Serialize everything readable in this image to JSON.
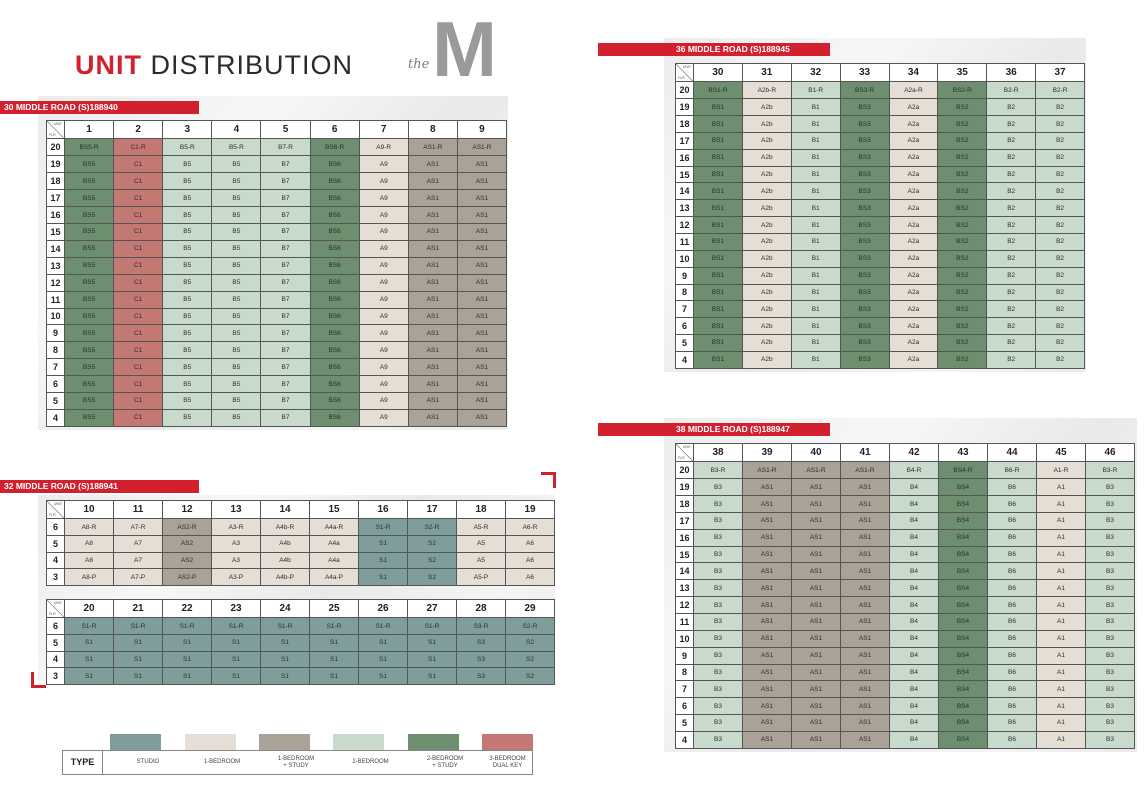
{
  "title": {
    "bold": "UNIT",
    "rest": " DISTRIBUTION"
  },
  "logo": {
    "small": "the",
    "big": "M"
  },
  "corner": {
    "unit": "UNIT",
    "flr": "FLR"
  },
  "buildings": [
    {
      "id": "b30",
      "banner": "30 MIDDLE ROAD (S)188940",
      "units": [
        "1",
        "2",
        "3",
        "4",
        "5",
        "6",
        "7",
        "8",
        "9"
      ],
      "rows": [
        {
          "floor": "20",
          "cells": [
            "BS5-R",
            "C1-R",
            "B5-R",
            "B5-R",
            "B7-R",
            "BS6-R",
            "A9-R",
            "AS1-R",
            "AS1-R"
          ]
        },
        {
          "floor": "19",
          "cells": [
            "BS5",
            "C1",
            "B5",
            "B5",
            "B7",
            "BS6",
            "A9",
            "AS1",
            "AS1"
          ]
        },
        {
          "floor": "18",
          "cells": [
            "BS5",
            "C1",
            "B5",
            "B5",
            "B7",
            "BS6",
            "A9",
            "AS1",
            "AS1"
          ]
        },
        {
          "floor": "17",
          "cells": [
            "BS5",
            "C1",
            "B5",
            "B5",
            "B7",
            "BS6",
            "A9",
            "AS1",
            "AS1"
          ]
        },
        {
          "floor": "16",
          "cells": [
            "BS5",
            "C1",
            "B5",
            "B5",
            "B7",
            "BS6",
            "A9",
            "AS1",
            "AS1"
          ]
        },
        {
          "floor": "15",
          "cells": [
            "BS5",
            "C1",
            "B5",
            "B5",
            "B7",
            "BS6",
            "A9",
            "AS1",
            "AS1"
          ]
        },
        {
          "floor": "14",
          "cells": [
            "BS5",
            "C1",
            "B5",
            "B5",
            "B7",
            "BS6",
            "A9",
            "AS1",
            "AS1"
          ]
        },
        {
          "floor": "13",
          "cells": [
            "BS5",
            "C1",
            "B5",
            "B5",
            "B7",
            "BS6",
            "A9",
            "AS1",
            "AS1"
          ]
        },
        {
          "floor": "12",
          "cells": [
            "BS5",
            "C1",
            "B5",
            "B5",
            "B7",
            "BS6",
            "A9",
            "AS1",
            "AS1"
          ]
        },
        {
          "floor": "11",
          "cells": [
            "BS5",
            "C1",
            "B5",
            "B5",
            "B7",
            "BS6",
            "A9",
            "AS1",
            "AS1"
          ]
        },
        {
          "floor": "10",
          "cells": [
            "BS5",
            "C1",
            "B5",
            "B5",
            "B7",
            "BS6",
            "A9",
            "AS1",
            "AS1"
          ]
        },
        {
          "floor": "9",
          "cells": [
            "BS5",
            "C1",
            "B5",
            "B5",
            "B7",
            "BS6",
            "A9",
            "AS1",
            "AS1"
          ]
        },
        {
          "floor": "8",
          "cells": [
            "BS5",
            "C1",
            "B5",
            "B5",
            "B7",
            "BS6",
            "A9",
            "AS1",
            "AS1"
          ]
        },
        {
          "floor": "7",
          "cells": [
            "BS5",
            "C1",
            "B5",
            "B5",
            "B7",
            "BS6",
            "A9",
            "AS1",
            "AS1"
          ]
        },
        {
          "floor": "6",
          "cells": [
            "BS5",
            "C1",
            "B5",
            "B5",
            "B7",
            "BS6",
            "A9",
            "AS1",
            "AS1"
          ]
        },
        {
          "floor": "5",
          "cells": [
            "BS5",
            "C1",
            "B5",
            "B5",
            "B7",
            "BS6",
            "A9",
            "AS1",
            "AS1"
          ]
        },
        {
          "floor": "4",
          "cells": [
            "BS5",
            "C1",
            "B5",
            "B5",
            "B7",
            "BS6",
            "A9",
            "AS1",
            "AS1"
          ]
        }
      ],
      "col_types": [
        "2brs",
        "3brd",
        "2br",
        "2br",
        "2br",
        "2brs",
        "1br",
        "1brs",
        "1brs"
      ]
    },
    {
      "id": "b32a",
      "banner": "32 MIDDLE ROAD (S)188941",
      "units": [
        "10",
        "11",
        "12",
        "13",
        "14",
        "15",
        "16",
        "17",
        "18",
        "19"
      ],
      "rows": [
        {
          "floor": "6",
          "cells": [
            "A8-R",
            "A7-R",
            "AS2-R",
            "A3-R",
            "A4b-R",
            "A4a-R",
            "S1-R",
            "S2-R",
            "A5-R",
            "A6-R"
          ]
        },
        {
          "floor": "5",
          "cells": [
            "A8",
            "A7",
            "AS2",
            "A3",
            "A4b",
            "A4a",
            "S1",
            "S2",
            "A5",
            "A6"
          ]
        },
        {
          "floor": "4",
          "cells": [
            "A8",
            "A7",
            "AS2",
            "A3",
            "A4b",
            "A4a",
            "S1",
            "S2",
            "A5",
            "A6"
          ]
        },
        {
          "floor": "3",
          "cells": [
            "A8-P",
            "A7-P",
            "AS2-P",
            "A3-P",
            "A4b-P",
            "A4a-P",
            "S1",
            "S2",
            "A5-P",
            "A6"
          ]
        }
      ],
      "col_types": [
        "1br",
        "1br",
        "1brs",
        "1br",
        "1br",
        "1br",
        "studio",
        "studio",
        "1br",
        "1br"
      ]
    },
    {
      "id": "b32b",
      "banner": "",
      "units": [
        "20",
        "21",
        "22",
        "23",
        "24",
        "25",
        "26",
        "27",
        "28",
        "29"
      ],
      "rows": [
        {
          "floor": "6",
          "cells": [
            "S1-R",
            "S1-R",
            "S1-R",
            "S1-R",
            "S1-R",
            "S1-R",
            "S1-R",
            "S1-R",
            "S3-R",
            "S2-R"
          ]
        },
        {
          "floor": "5",
          "cells": [
            "S1",
            "S1",
            "S1",
            "S1",
            "S1",
            "S1",
            "S1",
            "S1",
            "S3",
            "S2"
          ]
        },
        {
          "floor": "4",
          "cells": [
            "S1",
            "S1",
            "S1",
            "S1",
            "S1",
            "S1",
            "S1",
            "S1",
            "S3",
            "S2"
          ]
        },
        {
          "floor": "3",
          "cells": [
            "S1",
            "S1",
            "S1",
            "S1",
            "S1",
            "S1",
            "S1",
            "S1",
            "S3",
            "S2"
          ]
        }
      ],
      "col_types": [
        "studio",
        "studio",
        "studio",
        "studio",
        "studio",
        "studio",
        "studio",
        "studio",
        "studio",
        "studio"
      ]
    },
    {
      "id": "b36",
      "banner": "36 MIDDLE ROAD (S)188945",
      "units": [
        "30",
        "31",
        "32",
        "33",
        "34",
        "35",
        "36",
        "37"
      ],
      "rows": [
        {
          "floor": "20",
          "cells": [
            "BS1-R",
            "A2b-R",
            "B1-R",
            "BS3-R",
            "A2a-R",
            "BS2-R",
            "B2-R",
            "B2-R"
          ]
        },
        {
          "floor": "19",
          "cells": [
            "BS1",
            "A2b",
            "B1",
            "BS3",
            "A2a",
            "BS2",
            "B2",
            "B2"
          ]
        },
        {
          "floor": "18",
          "cells": [
            "BS1",
            "A2b",
            "B1",
            "BS3",
            "A2a",
            "BS2",
            "B2",
            "B2"
          ]
        },
        {
          "floor": "17",
          "cells": [
            "BS1",
            "A2b",
            "B1",
            "BS3",
            "A2a",
            "BS2",
            "B2",
            "B2"
          ]
        },
        {
          "floor": "16",
          "cells": [
            "BS1",
            "A2b",
            "B1",
            "BS3",
            "A2a",
            "BS2",
            "B2",
            "B2"
          ]
        },
        {
          "floor": "15",
          "cells": [
            "BS1",
            "A2b",
            "B1",
            "BS3",
            "A2a",
            "BS2",
            "B2",
            "B2"
          ]
        },
        {
          "floor": "14",
          "cells": [
            "BS1",
            "A2b",
            "B1",
            "BS3",
            "A2a",
            "BS2",
            "B2",
            "B2"
          ]
        },
        {
          "floor": "13",
          "cells": [
            "BS1",
            "A2b",
            "B1",
            "BS3",
            "A2a",
            "BS2",
            "B2",
            "B2"
          ]
        },
        {
          "floor": "12",
          "cells": [
            "BS1",
            "A2b",
            "B1",
            "BS3",
            "A2a",
            "BS2",
            "B2",
            "B2"
          ]
        },
        {
          "floor": "11",
          "cells": [
            "BS1",
            "A2b",
            "B1",
            "BS3",
            "A2a",
            "BS2",
            "B2",
            "B2"
          ]
        },
        {
          "floor": "10",
          "cells": [
            "BS1",
            "A2b",
            "B1",
            "BS3",
            "A2a",
            "BS2",
            "B2",
            "B2"
          ]
        },
        {
          "floor": "9",
          "cells": [
            "BS1",
            "A2b",
            "B1",
            "BS3",
            "A2a",
            "BS2",
            "B2",
            "B2"
          ]
        },
        {
          "floor": "8",
          "cells": [
            "BS1",
            "A2b",
            "B1",
            "BS3",
            "A2a",
            "BS2",
            "B2",
            "B2"
          ]
        },
        {
          "floor": "7",
          "cells": [
            "BS1",
            "A2b",
            "B1",
            "BS3",
            "A2a",
            "BS2",
            "B2",
            "B2"
          ]
        },
        {
          "floor": "6",
          "cells": [
            "BS1",
            "A2b",
            "B1",
            "BS3",
            "A2a",
            "BS2",
            "B2",
            "B2"
          ]
        },
        {
          "floor": "5",
          "cells": [
            "BS1",
            "A2b",
            "B1",
            "BS3",
            "A2a",
            "BS2",
            "B2",
            "B2"
          ]
        },
        {
          "floor": "4",
          "cells": [
            "BS1",
            "A2b",
            "B1",
            "BS3",
            "A2a",
            "BS2",
            "B2",
            "B2"
          ]
        }
      ],
      "col_types": [
        "2brs",
        "1br",
        "2br",
        "2brs",
        "1br",
        "2brs",
        "2br",
        "2br"
      ]
    },
    {
      "id": "b38",
      "banner": "38 MIDDLE ROAD (S)188947",
      "units": [
        "38",
        "39",
        "40",
        "41",
        "42",
        "43",
        "44",
        "45",
        "46"
      ],
      "rows": [
        {
          "floor": "20",
          "cells": [
            "B3-R",
            "AS1-R",
            "AS1-R",
            "AS1-R",
            "B4-R",
            "BS4-R",
            "B6-R",
            "A1-R",
            "B3-R"
          ]
        },
        {
          "floor": "19",
          "cells": [
            "B3",
            "AS1",
            "AS1",
            "AS1",
            "B4",
            "BS4",
            "B6",
            "A1",
            "B3"
          ]
        },
        {
          "floor": "18",
          "cells": [
            "B3",
            "AS1",
            "AS1",
            "AS1",
            "B4",
            "BS4",
            "B6",
            "A1",
            "B3"
          ]
        },
        {
          "floor": "17",
          "cells": [
            "B3",
            "AS1",
            "AS1",
            "AS1",
            "B4",
            "BS4",
            "B6",
            "A1",
            "B3"
          ]
        },
        {
          "floor": "16",
          "cells": [
            "B3",
            "AS1",
            "AS1",
            "AS1",
            "B4",
            "BS4",
            "B6",
            "A1",
            "B3"
          ]
        },
        {
          "floor": "15",
          "cells": [
            "B3",
            "AS1",
            "AS1",
            "AS1",
            "B4",
            "BS4",
            "B6",
            "A1",
            "B3"
          ]
        },
        {
          "floor": "14",
          "cells": [
            "B3",
            "AS1",
            "AS1",
            "AS1",
            "B4",
            "BS4",
            "B6",
            "A1",
            "B3"
          ]
        },
        {
          "floor": "13",
          "cells": [
            "B3",
            "AS1",
            "AS1",
            "AS1",
            "B4",
            "BS4",
            "B6",
            "A1",
            "B3"
          ]
        },
        {
          "floor": "12",
          "cells": [
            "B3",
            "AS1",
            "AS1",
            "AS1",
            "B4",
            "BS4",
            "B6",
            "A1",
            "B3"
          ]
        },
        {
          "floor": "11",
          "cells": [
            "B3",
            "AS1",
            "AS1",
            "AS1",
            "B4",
            "BS4",
            "B6",
            "A1",
            "B3"
          ]
        },
        {
          "floor": "10",
          "cells": [
            "B3",
            "AS1",
            "AS1",
            "AS1",
            "B4",
            "BS4",
            "B6",
            "A1",
            "B3"
          ]
        },
        {
          "floor": "9",
          "cells": [
            "B3",
            "AS1",
            "AS1",
            "AS1",
            "B4",
            "BS4",
            "B6",
            "A1",
            "B3"
          ]
        },
        {
          "floor": "8",
          "cells": [
            "B3",
            "AS1",
            "AS1",
            "AS1",
            "B4",
            "BS4",
            "B6",
            "A1",
            "B3"
          ]
        },
        {
          "floor": "7",
          "cells": [
            "B3",
            "AS1",
            "AS1",
            "AS1",
            "B4",
            "BS4",
            "B6",
            "A1",
            "B3"
          ]
        },
        {
          "floor": "6",
          "cells": [
            "B3",
            "AS1",
            "AS1",
            "AS1",
            "B4",
            "BS4",
            "B6",
            "A1",
            "B3"
          ]
        },
        {
          "floor": "5",
          "cells": [
            "B3",
            "AS1",
            "AS1",
            "AS1",
            "B4",
            "BS4",
            "B6",
            "A1",
            "B3"
          ]
        },
        {
          "floor": "4",
          "cells": [
            "B3",
            "AS1",
            "AS1",
            "AS1",
            "B4",
            "BS4",
            "B6",
            "A1",
            "B3"
          ]
        }
      ],
      "col_types": [
        "2br",
        "1brs",
        "1brs",
        "1brs",
        "2br",
        "2brs",
        "2br",
        "1br",
        "2br"
      ]
    }
  ],
  "legend": {
    "type_label": "TYPE",
    "items": [
      {
        "key": "studio",
        "label": "STUDIO",
        "color": "#7f9e9b"
      },
      {
        "key": "1br",
        "label": "1-BEDROOM",
        "color": "#e4ded5"
      },
      {
        "key": "1brs",
        "label": "1-BEDROOM\n+ STUDY",
        "color": "#aaa197"
      },
      {
        "key": "2br",
        "label": "2-BEDROOM",
        "color": "#c8dacb"
      },
      {
        "key": "2brs",
        "label": "2-BEDROOM\n+ STUDY",
        "color": "#6d8e6f"
      },
      {
        "key": "3brd",
        "label": "3-BEDROOM\nDUAL KEY",
        "color": "#c47873"
      }
    ]
  },
  "colors": {
    "accent": "#d3202f",
    "grid_line": "#555555"
  }
}
